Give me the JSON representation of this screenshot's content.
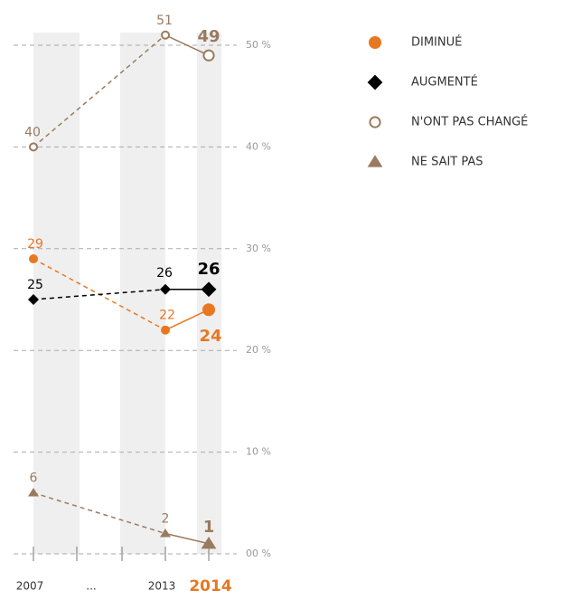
{
  "chart_data": {
    "type": "line",
    "categories": [
      "2007",
      "...",
      "2013",
      "2014"
    ],
    "series": [
      {
        "name": "DIMINUÉ",
        "color": "#e87722",
        "marker": "circle",
        "values": [
          29,
          null,
          22,
          24
        ]
      },
      {
        "name": "AUGMENTÉ",
        "color": "#000000",
        "marker": "diamond",
        "values": [
          25,
          null,
          26,
          26
        ]
      },
      {
        "name": "N'ONT PAS CHANGÉ",
        "color": "#9a7b5f",
        "marker": "hollow-circle",
        "values": [
          40,
          null,
          51,
          49
        ]
      },
      {
        "name": "NE SAIT PAS",
        "color": "#9a7b5f",
        "marker": "triangle",
        "values": [
          6,
          null,
          2,
          1
        ]
      }
    ],
    "ylim": [
      0,
      50
    ],
    "yticks": [
      {
        "value": 0,
        "label": "00 %"
      },
      {
        "value": 10,
        "label": "10 %"
      },
      {
        "value": 20,
        "label": "20 %"
      },
      {
        "value": 30,
        "label": "30 %"
      },
      {
        "value": 40,
        "label": "40 %"
      },
      {
        "value": 50,
        "label": "50 %"
      }
    ],
    "grid": true
  }
}
